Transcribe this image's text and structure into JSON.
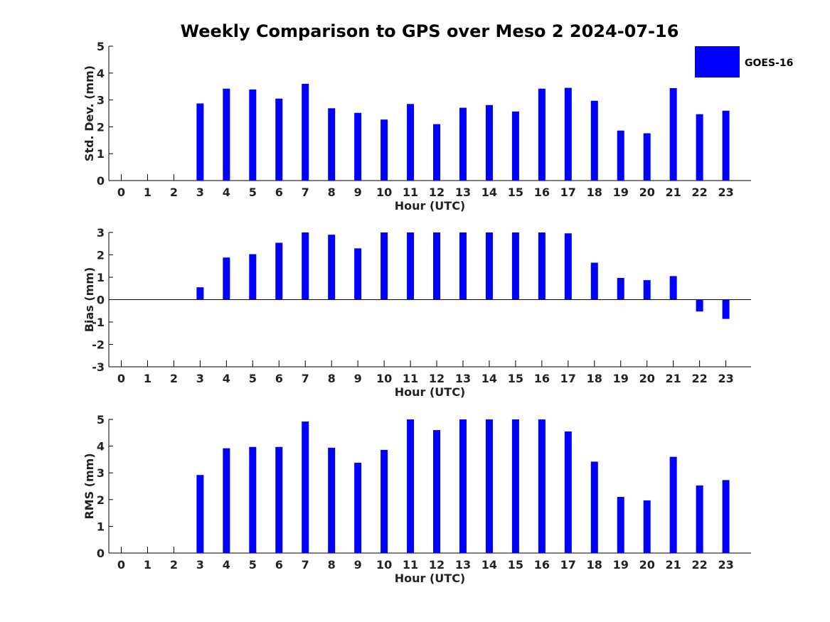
{
  "title": "Weekly Comparison to GPS over Meso 2 2024-07-16",
  "legend": {
    "label": "GOES-16",
    "color": "#0000ff"
  },
  "chart_data": [
    {
      "type": "bar",
      "name": "std",
      "ylabel": "Std. Dev. (mm)",
      "xlabel": "Hour (UTC)",
      "categories": [
        "0",
        "1",
        "2",
        "3",
        "4",
        "5",
        "6",
        "7",
        "8",
        "9",
        "10",
        "11",
        "12",
        "13",
        "14",
        "15",
        "16",
        "17",
        "18",
        "19",
        "20",
        "21",
        "22",
        "23"
      ],
      "series": [
        {
          "name": "GOES-16",
          "color": "#0000ff",
          "values": [
            null,
            null,
            null,
            2.87,
            3.42,
            3.39,
            3.05,
            3.6,
            2.69,
            2.52,
            2.27,
            2.85,
            2.1,
            2.71,
            2.81,
            2.57,
            3.42,
            3.45,
            2.97,
            1.86,
            1.76,
            3.44,
            2.47,
            2.6
          ]
        }
      ],
      "ylim": [
        0,
        5
      ],
      "yticks": [
        0,
        1,
        2,
        3,
        4,
        5
      ],
      "grid": false
    },
    {
      "type": "bar",
      "name": "bias",
      "ylabel": "Bias (mm)",
      "xlabel": "Hour (UTC)",
      "categories": [
        "0",
        "1",
        "2",
        "3",
        "4",
        "5",
        "6",
        "7",
        "8",
        "9",
        "10",
        "11",
        "12",
        "13",
        "14",
        "15",
        "16",
        "17",
        "18",
        "19",
        "20",
        "21",
        "22",
        "23"
      ],
      "series": [
        {
          "name": "GOES-16",
          "color": "#0000ff",
          "values": [
            null,
            null,
            null,
            0.55,
            1.88,
            2.03,
            2.54,
            3.0,
            2.9,
            2.29,
            3.0,
            3.0,
            3.0,
            3.0,
            3.0,
            3.0,
            3.0,
            2.96,
            1.65,
            0.97,
            0.87,
            1.05,
            -0.53,
            -0.86
          ]
        }
      ],
      "ylim": [
        -3,
        3
      ],
      "yticks": [
        -3,
        -2,
        -1,
        0,
        1,
        2,
        3
      ],
      "grid": false
    },
    {
      "type": "bar",
      "name": "rms",
      "ylabel": "RMS (mm)",
      "xlabel": "Hour (UTC)",
      "categories": [
        "0",
        "1",
        "2",
        "3",
        "4",
        "5",
        "6",
        "7",
        "8",
        "9",
        "10",
        "11",
        "12",
        "13",
        "14",
        "15",
        "16",
        "17",
        "18",
        "19",
        "20",
        "21",
        "22",
        "23"
      ],
      "series": [
        {
          "name": "GOES-16",
          "color": "#0000ff",
          "values": [
            null,
            null,
            null,
            2.92,
            3.92,
            3.97,
            3.97,
            4.92,
            3.94,
            3.38,
            3.86,
            5.0,
            4.6,
            5.0,
            5.0,
            5.0,
            5.0,
            4.55,
            3.42,
            2.1,
            1.97,
            3.6,
            2.53,
            2.73
          ]
        }
      ],
      "ylim": [
        0,
        5
      ],
      "yticks": [
        0,
        1,
        2,
        3,
        4,
        5
      ],
      "grid": false
    }
  ]
}
